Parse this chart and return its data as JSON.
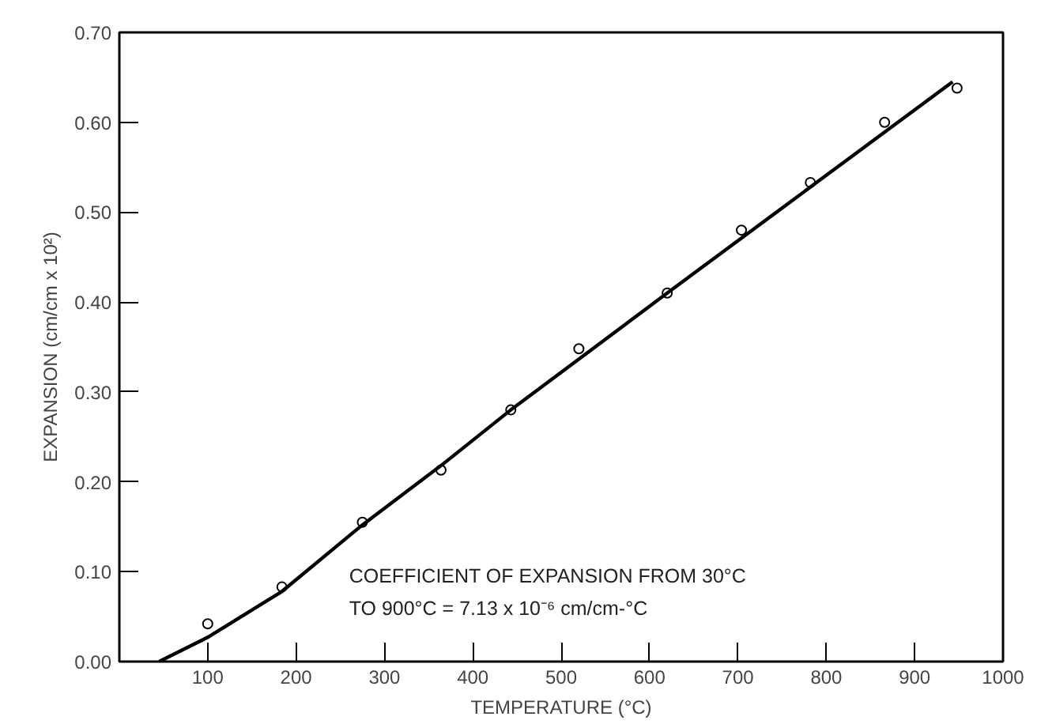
{
  "chart_data": {
    "type": "line",
    "xlabel": "TEMPERATURE (°C)",
    "ylabel": "EXPANSION (cm/cm x 10²)",
    "xlim": [
      0,
      1000
    ],
    "ylim": [
      0,
      0.7
    ],
    "xticks": [
      100,
      200,
      300,
      400,
      500,
      600,
      700,
      800,
      900,
      1000
    ],
    "yticks": [
      {
        "value": 0,
        "label": "0.00"
      },
      {
        "value": 0.1,
        "label": "0.10"
      },
      {
        "value": 0.2,
        "label": "0.20"
      },
      {
        "value": 0.3,
        "label": "0.30"
      },
      {
        "value": 0.4,
        "label": "0.40"
      },
      {
        "value": 0.5,
        "label": "0.50"
      },
      {
        "value": 0.6,
        "label": "0.60"
      },
      {
        "value": 0.7,
        "label": "0.70"
      }
    ],
    "grid": false,
    "annotations": [
      "COEFFICIENT OF EXPANSION FROM 30°C",
      "TO 900°C = 7.13 x 10⁻⁶ cm/cm-°C"
    ],
    "series": [
      {
        "type": "scatter",
        "marker": "circle",
        "color": "#000000",
        "x": [
          100,
          184,
          275,
          364,
          443,
          520,
          620,
          704,
          782,
          866,
          948
        ],
        "values": [
          0.042,
          0.083,
          0.155,
          0.213,
          0.28,
          0.348,
          0.41,
          0.48,
          0.533,
          0.6,
          0.638
        ]
      },
      {
        "marker": "none",
        "color": "#000000",
        "x": [
          45,
          100,
          184,
          275,
          364,
          443,
          620,
          943
        ],
        "values": [
          0,
          0.027,
          0.078,
          0.152,
          0.218,
          0.28,
          0.41,
          0.645
        ]
      }
    ]
  }
}
